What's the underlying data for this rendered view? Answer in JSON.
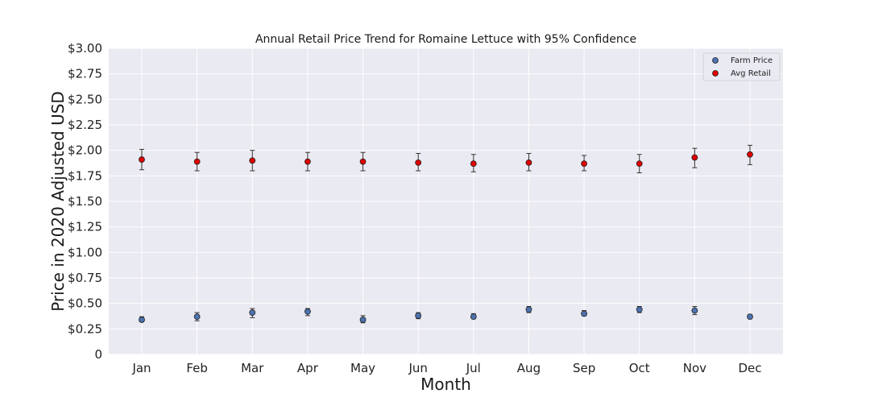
{
  "chart_data": {
    "type": "scatter",
    "title": "Annual Retail Price Trend for Romaine Lettuce with 95% Confidence",
    "xlabel": "Month",
    "ylabel": "Price in 2020 Adjusted USD",
    "categories": [
      "Jan",
      "Feb",
      "Mar",
      "Apr",
      "May",
      "Jun",
      "Jul",
      "Aug",
      "Sep",
      "Oct",
      "Nov",
      "Dec"
    ],
    "ylim": [
      0,
      3.0
    ],
    "yticks": [
      0,
      0.25,
      0.5,
      0.75,
      1.0,
      1.25,
      1.5,
      1.75,
      2.0,
      2.25,
      2.5,
      2.75,
      3.0
    ],
    "ytick_labels": [
      "0",
      "$0.25",
      "$0.50",
      "$0.75",
      "$1.00",
      "$1.25",
      "$1.50",
      "$1.75",
      "$2.00",
      "$2.25",
      "$2.50",
      "$2.75",
      "$3.00"
    ],
    "grid": true,
    "legend_position": "top-right",
    "series": [
      {
        "name": "Farm Price",
        "color": "#4c72b0",
        "values": [
          0.34,
          0.37,
          0.41,
          0.42,
          0.34,
          0.38,
          0.37,
          0.44,
          0.4,
          0.44,
          0.43,
          0.37
        ],
        "ci_low": [
          0.32,
          0.33,
          0.36,
          0.38,
          0.31,
          0.35,
          0.35,
          0.41,
          0.38,
          0.41,
          0.39,
          0.35
        ],
        "ci_high": [
          0.37,
          0.41,
          0.45,
          0.45,
          0.38,
          0.41,
          0.4,
          0.47,
          0.43,
          0.47,
          0.47,
          0.39
        ]
      },
      {
        "name": "Avg Retail",
        "color": "#e00000",
        "values": [
          1.91,
          1.89,
          1.9,
          1.89,
          1.89,
          1.88,
          1.87,
          1.88,
          1.87,
          1.87,
          1.93,
          1.96
        ],
        "ci_low": [
          1.81,
          1.8,
          1.8,
          1.8,
          1.8,
          1.8,
          1.79,
          1.8,
          1.8,
          1.78,
          1.83,
          1.86
        ],
        "ci_high": [
          2.01,
          1.98,
          2.0,
          1.98,
          1.98,
          1.97,
          1.96,
          1.97,
          1.95,
          1.96,
          2.02,
          2.05
        ]
      }
    ]
  }
}
